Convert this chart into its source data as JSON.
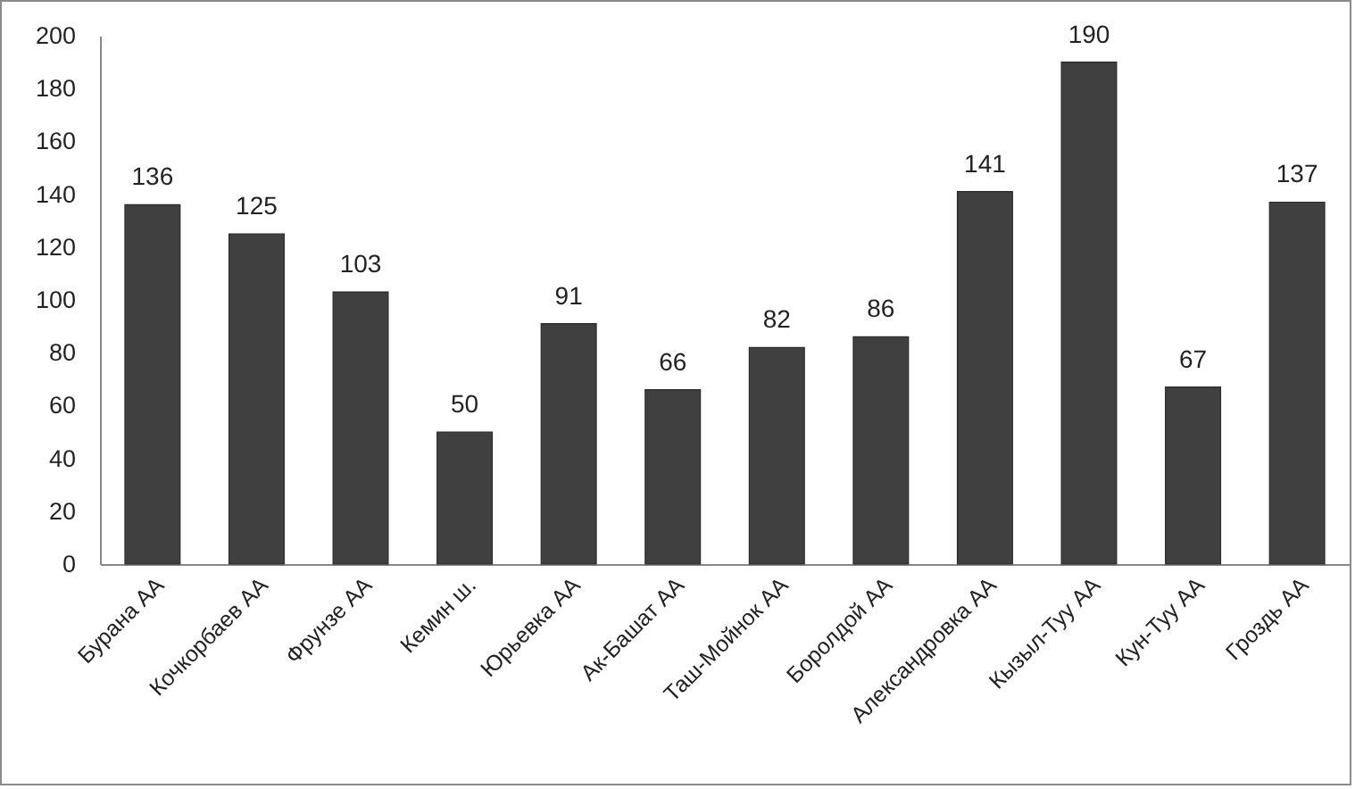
{
  "chart_data": {
    "type": "bar",
    "categories": [
      "Бурана АА",
      "Кочкорбаев АА",
      "Фрунзе АА",
      "Кемин ш.",
      "Юрьевка АА",
      "Ак-Башат АА",
      "Таш-Мойнок АА",
      "Боролдой АА",
      "Александровка АА",
      "Кызыл-Туу АА",
      "Кун-Туу АА",
      "Гроздь АА"
    ],
    "values": [
      136,
      125,
      103,
      50,
      91,
      66,
      82,
      86,
      141,
      190,
      67,
      137
    ],
    "color": "#404040",
    "ylim": [
      0,
      200
    ],
    "yticks": [
      0,
      20,
      40,
      60,
      80,
      100,
      120,
      140,
      160,
      180,
      200
    ],
    "data_labels": true
  }
}
